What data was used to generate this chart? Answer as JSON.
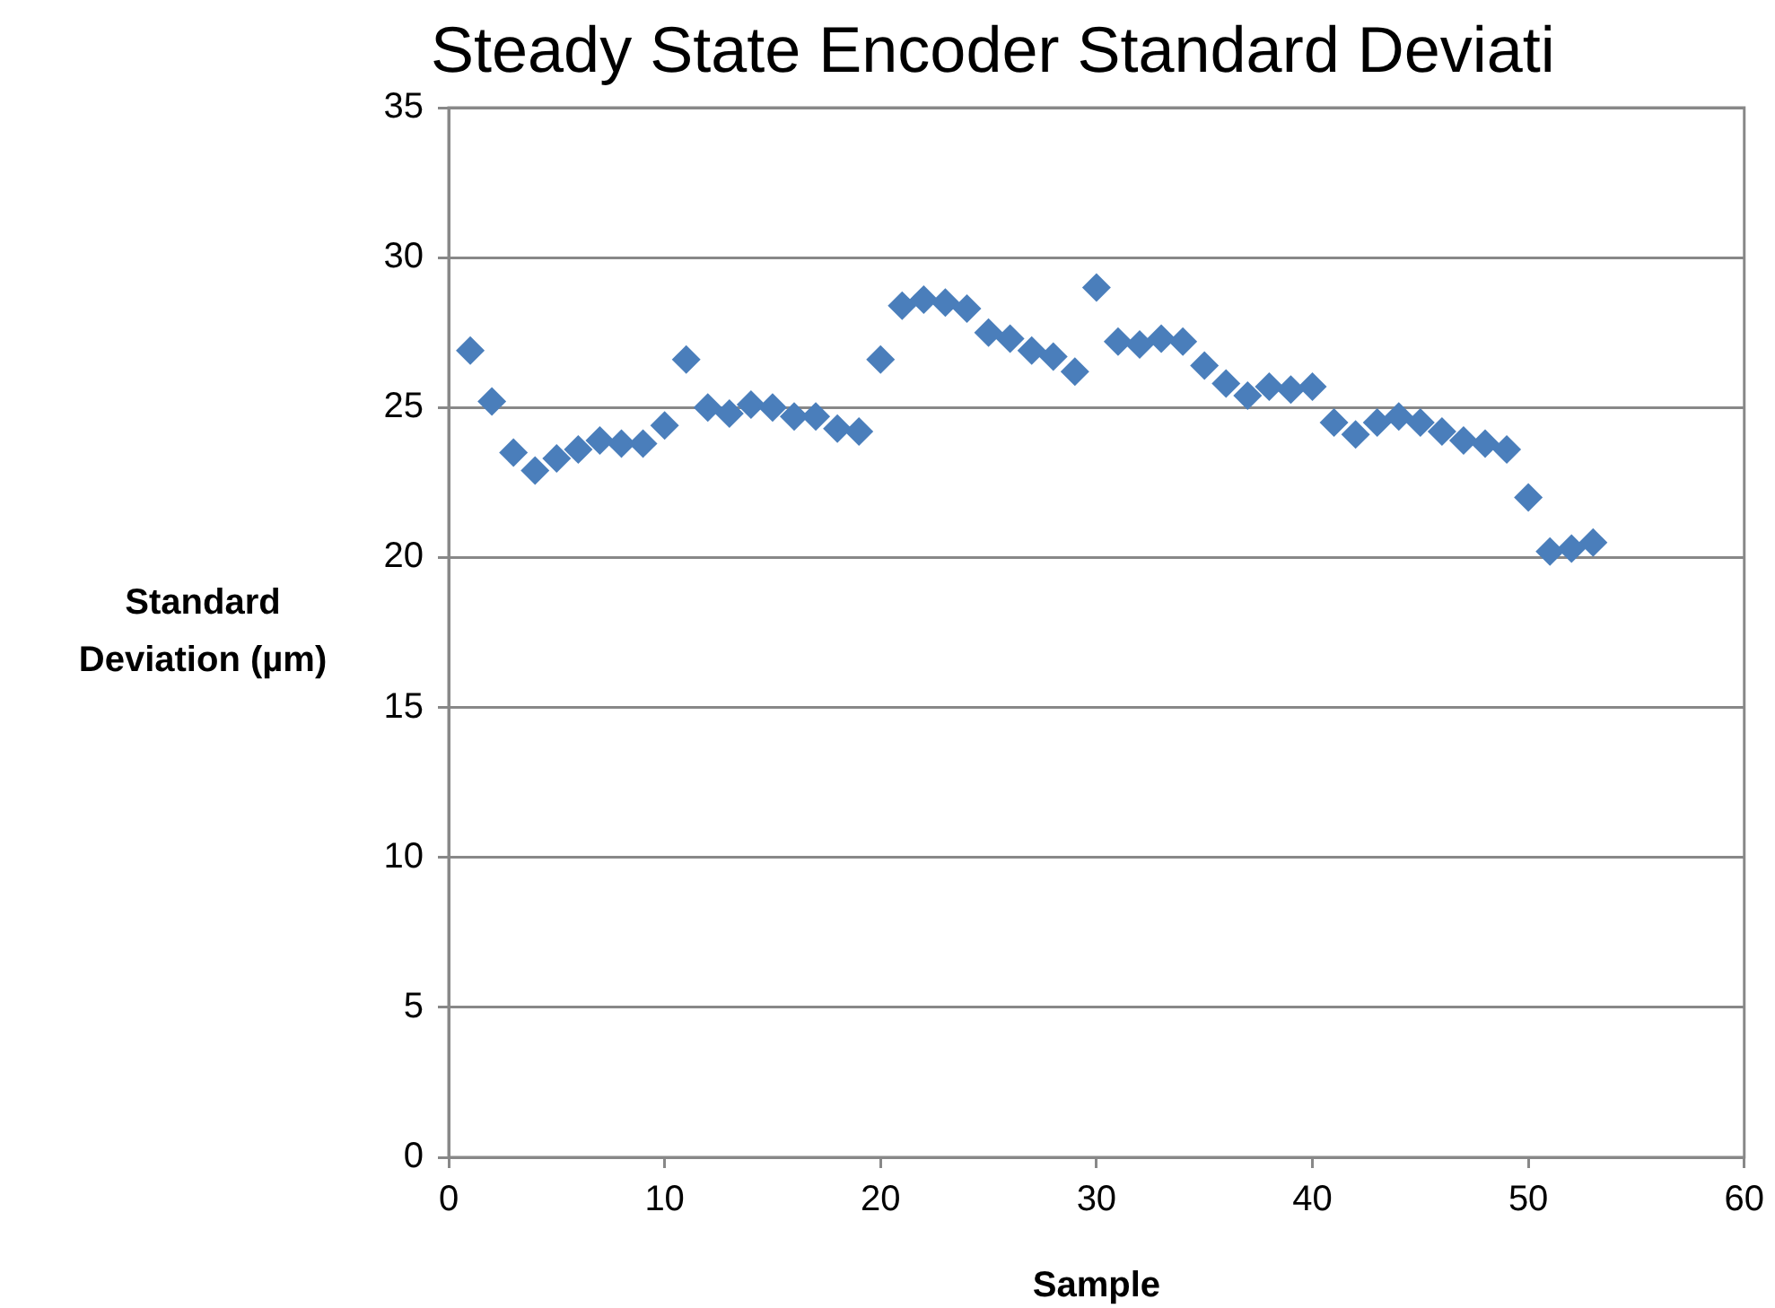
{
  "chart_data": {
    "type": "scatter",
    "title": "Steady State Encoder Standard Deviati",
    "xlabel": "Sample",
    "ylabel": "Standard Deviation (µm)",
    "x": [
      1,
      2,
      3,
      4,
      5,
      6,
      7,
      8,
      9,
      10,
      11,
      12,
      13,
      14,
      15,
      16,
      17,
      18,
      19,
      20,
      21,
      22,
      23,
      24,
      25,
      26,
      27,
      28,
      29,
      30,
      31,
      32,
      33,
      34,
      35,
      36,
      37,
      38,
      39,
      40,
      41,
      42,
      43,
      44,
      45,
      46,
      47,
      48,
      49,
      50,
      51,
      52,
      53
    ],
    "series": [
      {
        "color": "#4a7ebb",
        "values": [
          26.9,
          25.2,
          23.5,
          22.9,
          23.3,
          23.6,
          23.9,
          23.8,
          23.8,
          24.4,
          26.6,
          25.0,
          24.8,
          25.1,
          25.0,
          24.7,
          24.7,
          24.3,
          24.2,
          26.6,
          28.4,
          28.6,
          28.5,
          28.3,
          27.5,
          27.3,
          26.9,
          26.7,
          26.2,
          29.0,
          27.2,
          27.1,
          27.3,
          27.2,
          26.4,
          25.8,
          25.4,
          25.7,
          25.6,
          25.7,
          24.5,
          24.1,
          24.5,
          24.7,
          24.5,
          24.2,
          23.9,
          23.8,
          23.6,
          22.0,
          20.2,
          20.3,
          20.5
        ]
      }
    ],
    "xlim": [
      0,
      60
    ],
    "xticks": [
      0,
      10,
      20,
      30,
      40,
      50,
      60
    ],
    "ylim": [
      0,
      35
    ],
    "yticks": [
      0,
      5,
      10,
      15,
      20,
      25,
      30,
      35
    ],
    "grid": "y",
    "marker": "diamond"
  }
}
